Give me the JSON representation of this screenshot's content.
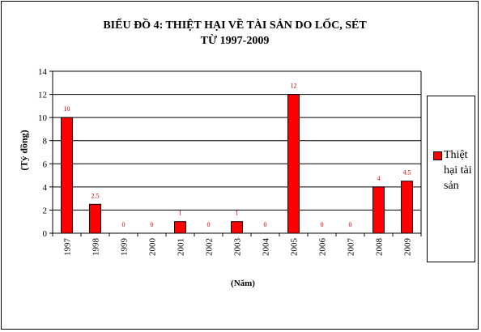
{
  "chart_data": {
    "type": "bar",
    "title_lines": [
      "BIỂU ĐỒ 4: THIỆT HẠI VỀ TÀI SẢN DO LỐC, SÉT",
      "TỪ 1997-2009"
    ],
    "xlabel": "(Năm)",
    "ylabel": "(Tỷ đồng)",
    "categories": [
      "1997",
      "1998",
      "1999",
      "2000",
      "2001",
      "2002",
      "2003",
      "2004",
      "2005",
      "2006",
      "2007",
      "2008",
      "2009"
    ],
    "series": [
      {
        "name": "Thiệt hại tài sản",
        "values": [
          10,
          2.5,
          0,
          0,
          1,
          0,
          1,
          0,
          12,
          0,
          0,
          4,
          4.5
        ],
        "data_labels": [
          "10",
          "2.5",
          "0",
          "0",
          "1",
          "0",
          "1",
          "0",
          "12",
          "0",
          "0",
          "4",
          "4.5"
        ],
        "color": "#ff0000"
      }
    ],
    "ylim": [
      0,
      14
    ],
    "yticks": [
      "0",
      "2",
      "4",
      "6",
      "8",
      "10",
      "12",
      "14"
    ],
    "grid": true,
    "legend_position": "right"
  }
}
